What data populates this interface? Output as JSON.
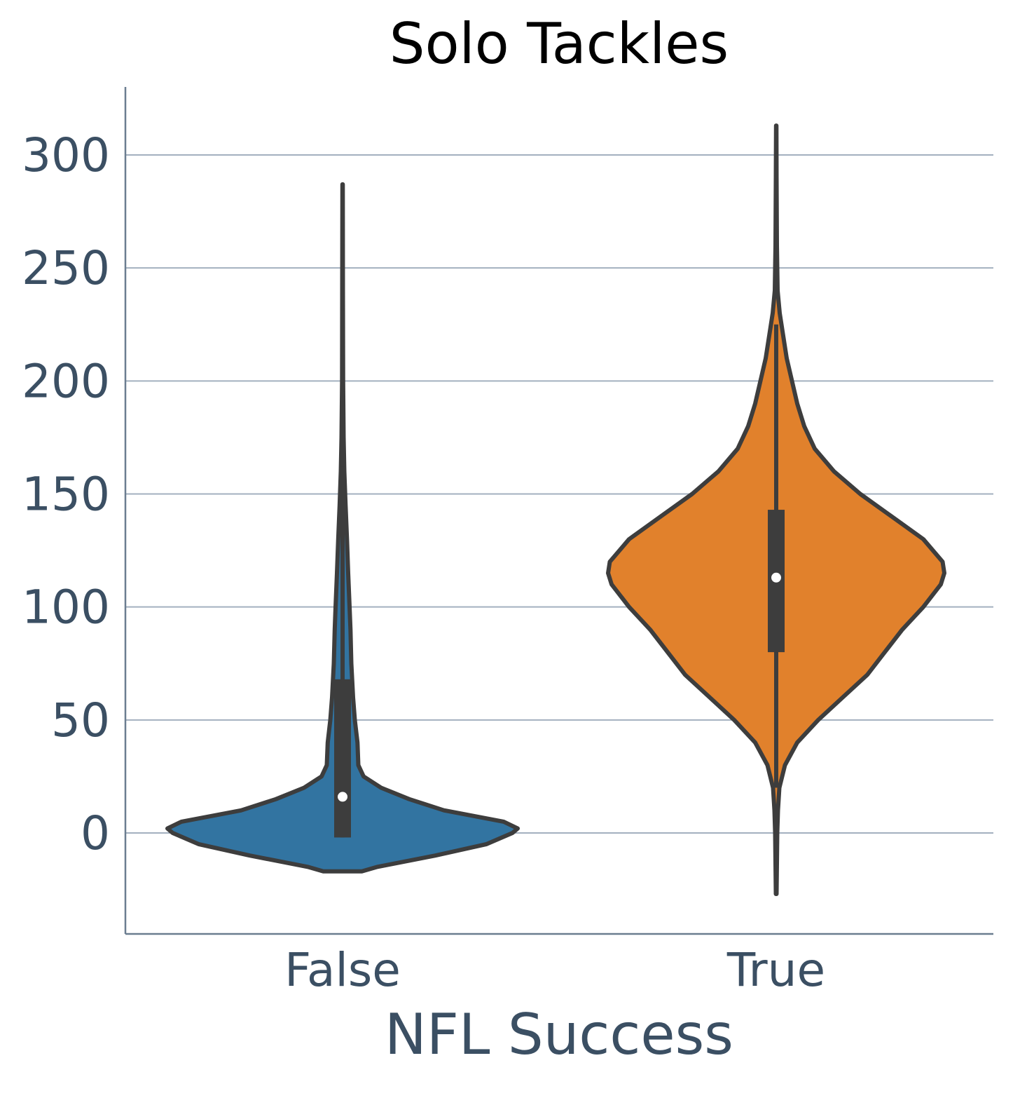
{
  "chart_data": {
    "type": "violin",
    "title": "Solo Tackles",
    "xlabel": "NFL Success",
    "ylabel": "",
    "categories": [
      "False",
      "True"
    ],
    "yticks": [
      0,
      50,
      100,
      150,
      200,
      250,
      300
    ],
    "ylim": [
      -45,
      330
    ],
    "grid": "horizontal",
    "colors": {
      "False": "#3274a1",
      "True": "#e1812c",
      "outline": "#3d3d3d",
      "grid": "#a3b0bf",
      "axis": "#6b7d90",
      "text": "#3b4f63",
      "median": "#ffffff"
    },
    "series": [
      {
        "category": "False",
        "median": 16,
        "q1": -2,
        "q3": 68,
        "whisker_low": -2,
        "whisker_high": 162,
        "density": [
          [
            -17,
            0.11
          ],
          [
            -15,
            0.2
          ],
          [
            -10,
            0.53
          ],
          [
            -5,
            0.82
          ],
          [
            0,
            0.97
          ],
          [
            2,
            1.0
          ],
          [
            5,
            0.92
          ],
          [
            10,
            0.58
          ],
          [
            15,
            0.38
          ],
          [
            20,
            0.22
          ],
          [
            25,
            0.12
          ],
          [
            30,
            0.09
          ],
          [
            40,
            0.085
          ],
          [
            50,
            0.07
          ],
          [
            60,
            0.06
          ],
          [
            75,
            0.05
          ],
          [
            90,
            0.045
          ],
          [
            100,
            0.04
          ],
          [
            115,
            0.032
          ],
          [
            130,
            0.025
          ],
          [
            145,
            0.017
          ],
          [
            160,
            0.01
          ],
          [
            175,
            0.006
          ],
          [
            200,
            0.003
          ],
          [
            240,
            0.002
          ],
          [
            287,
            0.001
          ]
        ]
      },
      {
        "category": "True",
        "median": 113,
        "q1": 80,
        "q3": 143,
        "whisker_low": 20,
        "whisker_high": 225,
        "density": [
          [
            -27,
            0.002
          ],
          [
            0,
            0.006
          ],
          [
            10,
            0.01
          ],
          [
            20,
            0.018
          ],
          [
            30,
            0.05
          ],
          [
            40,
            0.12
          ],
          [
            50,
            0.24
          ],
          [
            60,
            0.38
          ],
          [
            70,
            0.52
          ],
          [
            80,
            0.62
          ],
          [
            90,
            0.72
          ],
          [
            100,
            0.84
          ],
          [
            110,
            0.94
          ],
          [
            115,
            0.96
          ],
          [
            120,
            0.95
          ],
          [
            130,
            0.84
          ],
          [
            140,
            0.66
          ],
          [
            150,
            0.48
          ],
          [
            160,
            0.33
          ],
          [
            170,
            0.22
          ],
          [
            180,
            0.16
          ],
          [
            190,
            0.12
          ],
          [
            200,
            0.09
          ],
          [
            210,
            0.06
          ],
          [
            220,
            0.04
          ],
          [
            230,
            0.02
          ],
          [
            240,
            0.008
          ],
          [
            260,
            0.004
          ],
          [
            290,
            0.002
          ],
          [
            313,
            0.001
          ]
        ]
      }
    ]
  }
}
